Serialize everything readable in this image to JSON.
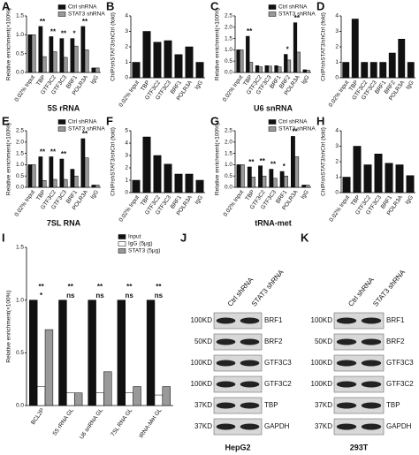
{
  "chart_data": [
    {
      "panel": "A",
      "type": "bar",
      "title": "5S rRNA",
      "y_label": "Relative enrichment(×100%)",
      "categories": [
        "0.02% Input",
        "TBP",
        "GTF3C2",
        "GTF3C3",
        "BRF1",
        "POLR3A",
        "IgG"
      ],
      "series": [
        {
          "name": "Ctrl shRNA",
          "color": "#111111",
          "values": [
            1.0,
            1.22,
            0.95,
            0.9,
            0.9,
            1.22,
            0.12
          ]
        },
        {
          "name": "STAT3 shRNA",
          "color": "#999999",
          "values": [
            1.0,
            0.42,
            0.55,
            0.4,
            0.7,
            0.6,
            0.12
          ]
        }
      ],
      "ylim": [
        0,
        1.5
      ],
      "yticks": [
        {
          "value": 0,
          "label": "0.0"
        },
        {
          "value": 0.5,
          "label": "0.5"
        },
        {
          "value": 1,
          "label": "1.0"
        },
        {
          "value": 1.5,
          "label": "1.5"
        }
      ],
      "significance": [
        null,
        "**",
        "**",
        "**",
        "*",
        "**",
        null
      ],
      "legend": "upper right"
    },
    {
      "panel": "B",
      "type": "bar",
      "y_label": "ChIP/shSTAT3/shCtrl (fold)",
      "categories": [
        "0.02% Input",
        "TBP",
        "GTF3C2",
        "GTF3C3",
        "BRF1",
        "POLR3A",
        "IgG"
      ],
      "values": [
        1.0,
        3.0,
        2.3,
        2.4,
        1.5,
        2.0,
        1.0
      ],
      "color": "#111111",
      "ylim": [
        0,
        4
      ],
      "yticks": [
        0,
        1,
        2,
        3,
        4
      ]
    },
    {
      "panel": "C",
      "type": "bar",
      "title": "U6 snRNA",
      "y_label": "Relative enrichment(×100%)",
      "categories": [
        "0.02% Input",
        "TBP",
        "GTF3C2",
        "GTF3C3",
        "BRF1",
        "BRF2",
        "POLR3A",
        "IgG"
      ],
      "series": [
        {
          "name": "Ctrl shRNA",
          "color": "#111111",
          "values": [
            1.0,
            1.6,
            0.3,
            0.3,
            0.3,
            0.8,
            2.2,
            0.12
          ]
        },
        {
          "name": "STAT3 shRNA",
          "color": "#999999",
          "values": [
            1.0,
            0.45,
            0.25,
            0.28,
            0.25,
            0.55,
            0.9,
            0.1
          ]
        }
      ],
      "ylim": [
        0,
        2.5
      ],
      "yticks": [
        {
          "value": 0,
          "label": "0.0"
        },
        {
          "value": 0.5,
          "label": "0.5"
        },
        {
          "value": 1,
          "label": "1.0"
        },
        {
          "value": 1.5,
          "label": "1.5"
        },
        {
          "value": 2,
          "label": "2.0"
        },
        {
          "value": 2.5,
          "label": "2.5"
        }
      ],
      "significance": [
        null,
        "**",
        null,
        null,
        null,
        "*",
        "**",
        null
      ],
      "legend": "upper right"
    },
    {
      "panel": "D",
      "type": "bar",
      "y_label": "ChIP/shSTAT3/shCtrl (fold)",
      "categories": [
        "0.02% Input",
        "TBP",
        "GTF3C2",
        "GTF3C3",
        "BRF1",
        "BRF2",
        "POLR3A",
        "IgG"
      ],
      "values": [
        1.0,
        3.8,
        1.0,
        1.0,
        1.0,
        1.6,
        2.5,
        1.0
      ],
      "color": "#111111",
      "ylim": [
        0,
        4
      ],
      "yticks": [
        0,
        1,
        2,
        3,
        4
      ]
    },
    {
      "panel": "E",
      "type": "bar",
      "title": "7SL RNA",
      "y_label": "Relative enrichment(×100%)",
      "categories": [
        "0.02% Input",
        "TBP",
        "GTF3C2",
        "GTF3C3",
        "BRF1",
        "POLR3A",
        "IgG"
      ],
      "series": [
        {
          "name": "Ctrl shRNA",
          "color": "#111111",
          "values": [
            1.0,
            1.35,
            1.35,
            1.25,
            0.8,
            2.15,
            0.1
          ]
        },
        {
          "name": "STAT3 shRNA",
          "color": "#999999",
          "values": [
            1.0,
            0.3,
            0.35,
            0.35,
            0.5,
            1.3,
            0.1
          ]
        }
      ],
      "ylim": [
        0,
        2.5
      ],
      "yticks": [
        {
          "value": 0,
          "label": "0.0"
        },
        {
          "value": 0.5,
          "label": "0.5"
        },
        {
          "value": 1,
          "label": "1.0"
        },
        {
          "value": 1.5,
          "label": "1.5"
        },
        {
          "value": 2,
          "label": "2.0"
        },
        {
          "value": 2.5,
          "label": "2.5"
        }
      ],
      "significance": [
        null,
        "**",
        "**",
        "**",
        null,
        "**",
        null
      ],
      "legend": "upper right"
    },
    {
      "panel": "F",
      "type": "bar",
      "y_label": "ChIP/shSTAT3/shCtrl (fold)",
      "categories": [
        "0.02% Input",
        "TBP",
        "GTF3C2",
        "GTF3C3",
        "BRF1",
        "POLR3A",
        "IgG"
      ],
      "values": [
        1.0,
        4.5,
        3.0,
        2.3,
        1.5,
        1.5,
        1.0
      ],
      "color": "#111111",
      "ylim": [
        0,
        5
      ],
      "yticks": [
        0,
        1,
        2,
        3,
        4,
        5
      ]
    },
    {
      "panel": "G",
      "type": "bar",
      "title": "tRNA-met",
      "y_label": "Relative enrichment(×100%)",
      "categories": [
        "0.02% Input",
        "TBP",
        "GTF3C2",
        "GTF3C3",
        "BRF1",
        "POLR3A",
        "IgG"
      ],
      "series": [
        {
          "name": "Ctrl shRNA",
          "color": "#111111",
          "values": [
            1.0,
            0.9,
            0.95,
            0.8,
            0.7,
            2.25,
            0.1
          ]
        },
        {
          "name": "STAT3 shRNA",
          "color": "#999999",
          "values": [
            1.0,
            0.45,
            0.5,
            0.4,
            0.5,
            1.35,
            0.1
          ]
        }
      ],
      "ylim": [
        0,
        2.5
      ],
      "yticks": [
        {
          "value": 0,
          "label": "0.0"
        },
        {
          "value": 0.5,
          "label": "0.5"
        },
        {
          "value": 1,
          "label": "1.0"
        },
        {
          "value": 1.5,
          "label": "1.5"
        },
        {
          "value": 2,
          "label": "2.0"
        },
        {
          "value": 2.5,
          "label": "2.5"
        }
      ],
      "significance": [
        null,
        "**",
        "**",
        "**",
        "*",
        "**",
        null
      ],
      "legend": "upper right"
    },
    {
      "panel": "H",
      "type": "bar",
      "y_label": "ChIP/shSTAT3/shCtrl (fold)",
      "categories": [
        "0.02% Input",
        "TBP",
        "GTF3C2",
        "GTF3C3",
        "BRF1",
        "POLR3A",
        "IgG"
      ],
      "values": [
        1.0,
        3.0,
        1.8,
        2.5,
        1.9,
        1.8,
        1.1
      ],
      "color": "#111111",
      "ylim": [
        0,
        4
      ],
      "yticks": [
        0,
        1,
        2,
        3,
        4
      ]
    },
    {
      "panel": "I",
      "type": "bar",
      "y_label": "Relative enrichment(×100%)",
      "categories": [
        "BCL2P",
        "5S rRNA GL",
        "U6 snRNA GL",
        "7SL RNA GL",
        "tRNA-Met GL"
      ],
      "series": [
        {
          "name": "Input",
          "color": "#111111",
          "values": [
            1.0,
            1.0,
            1.0,
            1.0,
            1.0
          ]
        },
        {
          "name": "IgG (5μg)",
          "color": "#ffffff",
          "values": [
            0.18,
            0.12,
            0.12,
            0.12,
            0.1
          ]
        },
        {
          "name": "STAT3 (5μg)",
          "color": "#999999",
          "values": [
            0.72,
            0.12,
            0.32,
            0.18,
            0.18
          ]
        }
      ],
      "ylim": [
        0,
        1.5
      ],
      "yticks": [
        {
          "value": 0,
          "label": "0.0"
        },
        {
          "value": 0.5,
          "label": "0.5"
        },
        {
          "value": 1,
          "label": "1.0"
        },
        {
          "value": 1.5,
          "label": "1.5"
        }
      ],
      "significance": [
        [
          "*",
          "**"
        ],
        [
          "ns",
          "**"
        ],
        [
          "ns",
          "**"
        ],
        [
          "ns",
          "**"
        ],
        [
          "ns",
          "**"
        ]
      ],
      "legend": "upper right"
    }
  ],
  "blots": [
    {
      "panel": "J",
      "columns": [
        "Ctrl shRNA",
        "STAT3 shRNA"
      ],
      "cell_line": "HepG2",
      "rows": [
        {
          "mw": "100KD",
          "protein": "BRF1"
        },
        {
          "mw": "50KD",
          "protein": "BRF2"
        },
        {
          "mw": "100KD",
          "protein": "GTF3C3"
        },
        {
          "mw": "100KD",
          "protein": "GTF3C2"
        },
        {
          "mw": "37KD",
          "protein": "TBP"
        },
        {
          "mw": "37KD",
          "protein": "GAPDH"
        }
      ]
    },
    {
      "panel": "K",
      "columns": [
        "Ctrl shRNA",
        "STAT3 shRNA"
      ],
      "cell_line": "293T",
      "rows": [
        {
          "mw": "100KD",
          "protein": "BRF1"
        },
        {
          "mw": "50KD",
          "protein": "BRF2"
        },
        {
          "mw": "100KD",
          "protein": "GTF3C3"
        },
        {
          "mw": "100KD",
          "protein": "GTF3C2"
        },
        {
          "mw": "37KD",
          "protein": "TBP"
        },
        {
          "mw": "37KD",
          "protein": "GAPDH"
        }
      ]
    }
  ]
}
